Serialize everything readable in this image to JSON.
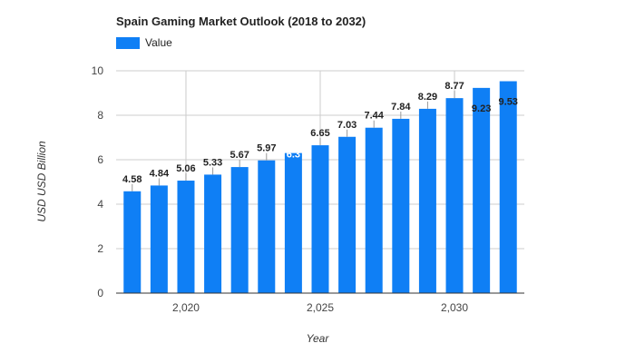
{
  "chart_data": {
    "type": "bar",
    "title": "Spain Gaming Market Outlook (2018 to 2032)",
    "xlabel": "Year",
    "ylabel": "USD USD Billion",
    "legend": {
      "entries": [
        "Value"
      ],
      "placement": "top-left"
    },
    "colors": {
      "bar": "#0f7ff5",
      "grid": "#cccccc",
      "axis": "#333333"
    },
    "grid": true,
    "ylim": [
      0,
      10
    ],
    "xlim": [
      2017.4,
      2032.6
    ],
    "y_ticks": [
      "0",
      "2",
      "4",
      "6",
      "8",
      "10"
    ],
    "x_ticks": [
      {
        "value": 2020,
        "label": "2,020"
      },
      {
        "value": 2025,
        "label": "2,025"
      },
      {
        "value": 2030,
        "label": "2,030"
      }
    ],
    "series": [
      {
        "name": "Value",
        "x": [
          2018,
          2019,
          2020,
          2021,
          2022,
          2023,
          2024,
          2025,
          2026,
          2027,
          2028,
          2029,
          2030,
          2031,
          2032
        ],
        "values": [
          4.58,
          4.84,
          5.06,
          5.33,
          5.67,
          5.97,
          6.3,
          6.65,
          7.03,
          7.44,
          7.84,
          8.29,
          8.77,
          9.23,
          9.53
        ],
        "labels": [
          "4.58",
          "4.84",
          "5.06",
          "5.33",
          "5.67",
          "5.97",
          "6.3",
          "6.65",
          "7.03",
          "7.44",
          "7.84",
          "8.29",
          "8.77",
          "9.23",
          "9.53"
        ]
      }
    ]
  }
}
